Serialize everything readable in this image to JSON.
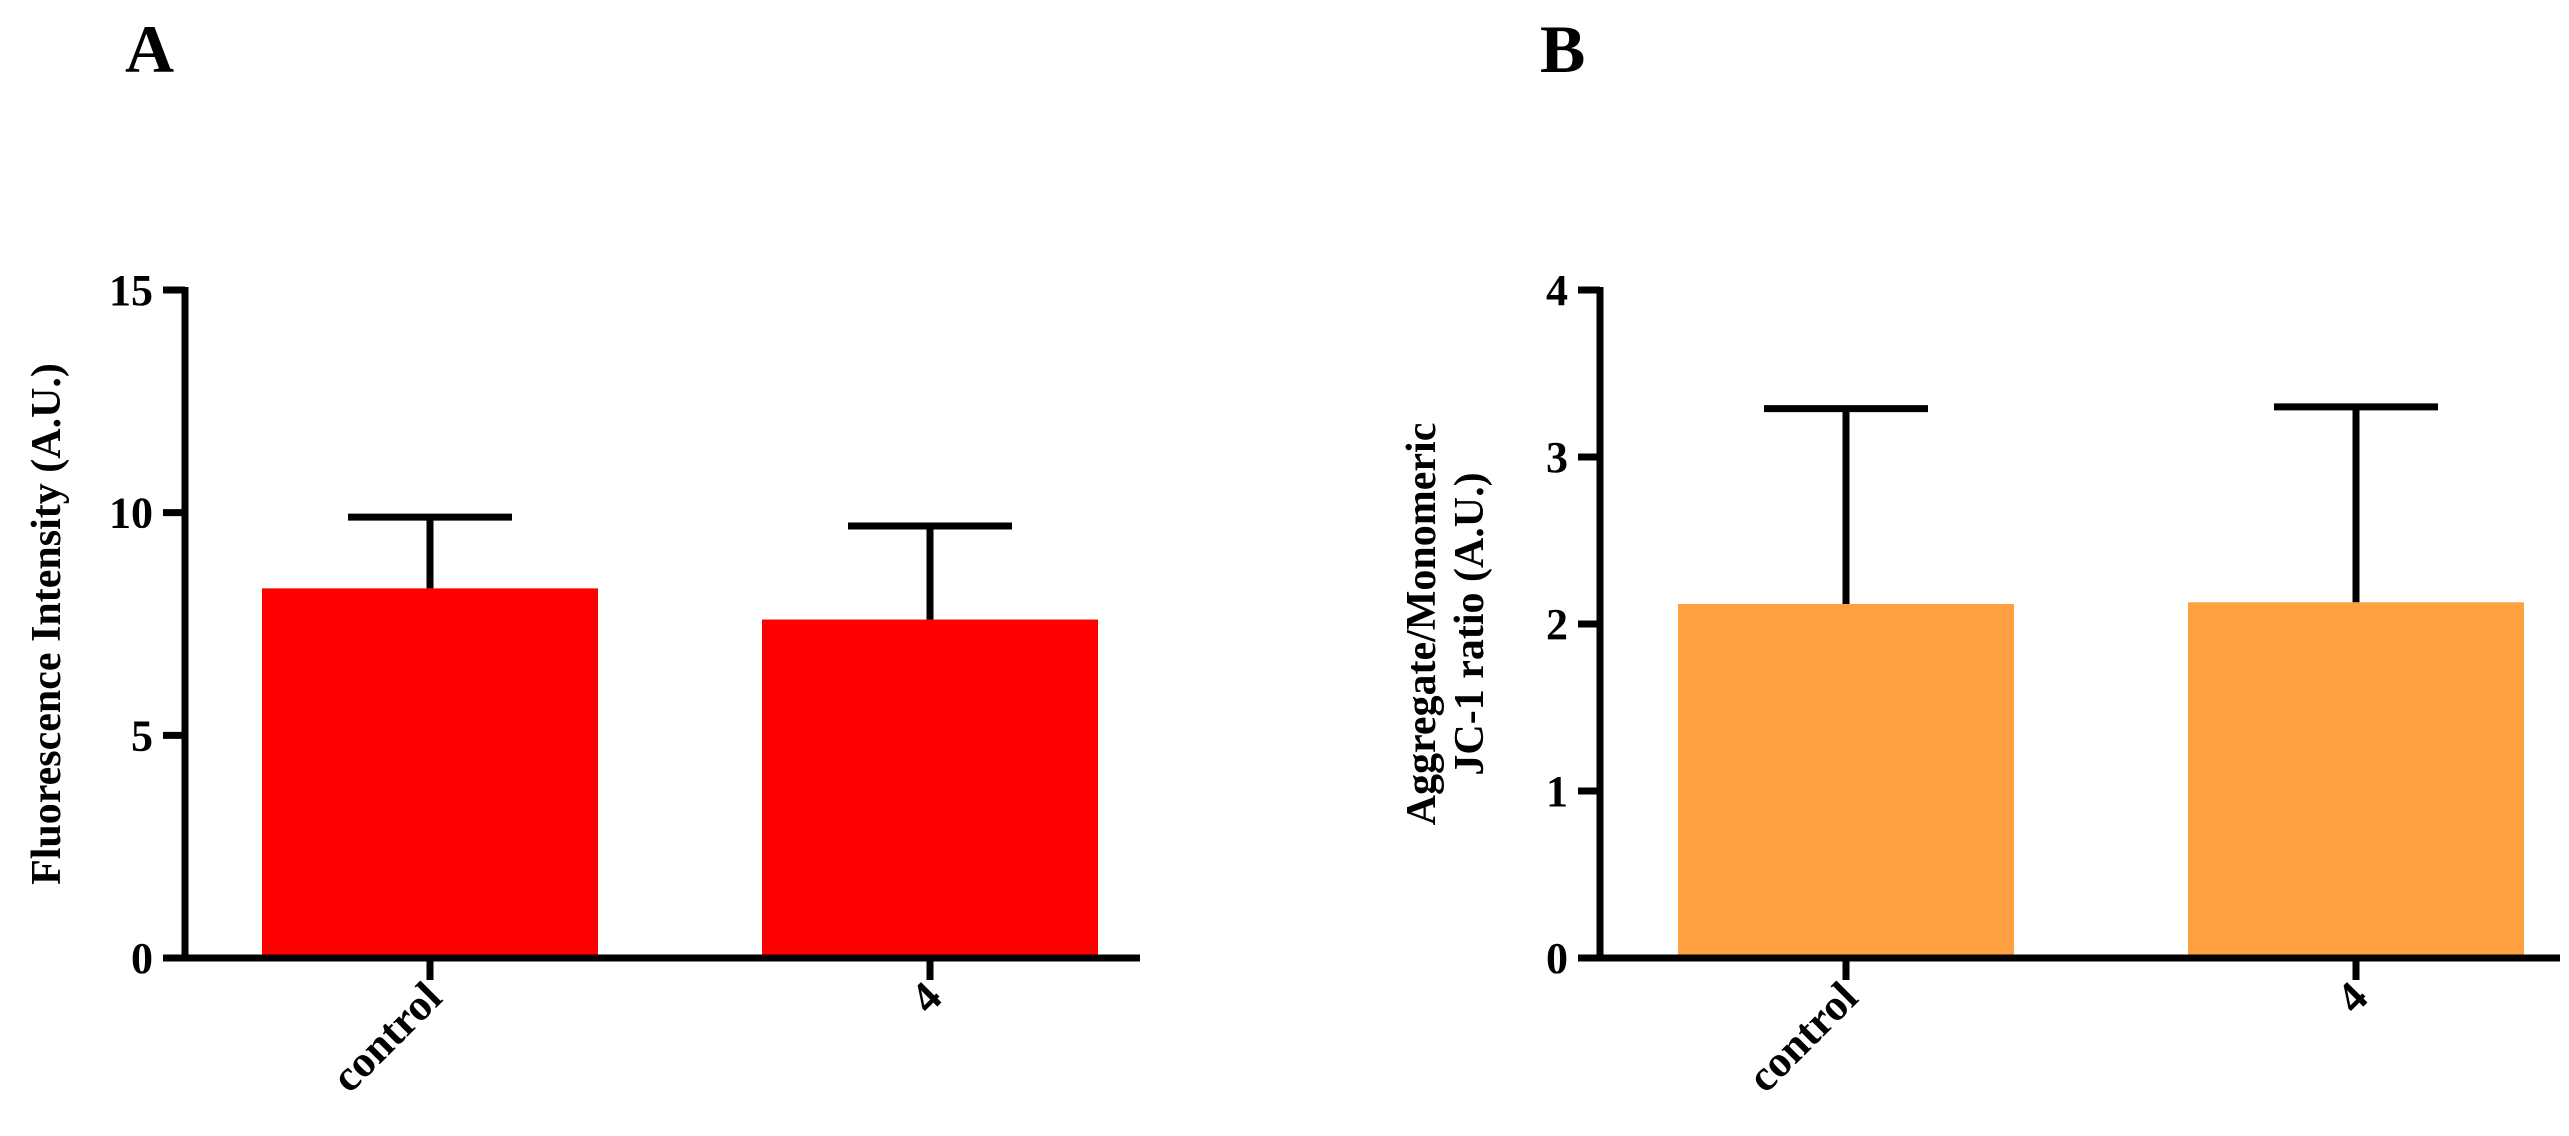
{
  "chart_data": [
    {
      "type": "bar",
      "panel_label": "A",
      "categories": [
        "control",
        "4"
      ],
      "values": [
        8.3,
        7.6
      ],
      "error": [
        1.6,
        2.1
      ],
      "ylabel_lines": [
        "Fluorescence Intensity (A.U.)"
      ],
      "ylim": [
        0,
        15
      ],
      "yticks": [
        0,
        5,
        10,
        15
      ],
      "bar_color": "#ff0000",
      "grid": false
    },
    {
      "type": "bar",
      "panel_label": "B",
      "categories": [
        "control",
        "4"
      ],
      "values": [
        2.12,
        2.13
      ],
      "error": [
        1.17,
        1.17
      ],
      "ylabel_lines": [
        "Aggregate/Monomeric",
        "JC-1 ratio (A.U.)"
      ],
      "ylim": [
        0,
        4
      ],
      "yticks": [
        0,
        1,
        2,
        3,
        4
      ],
      "bar_color": "#ffa040",
      "grid": false
    }
  ]
}
